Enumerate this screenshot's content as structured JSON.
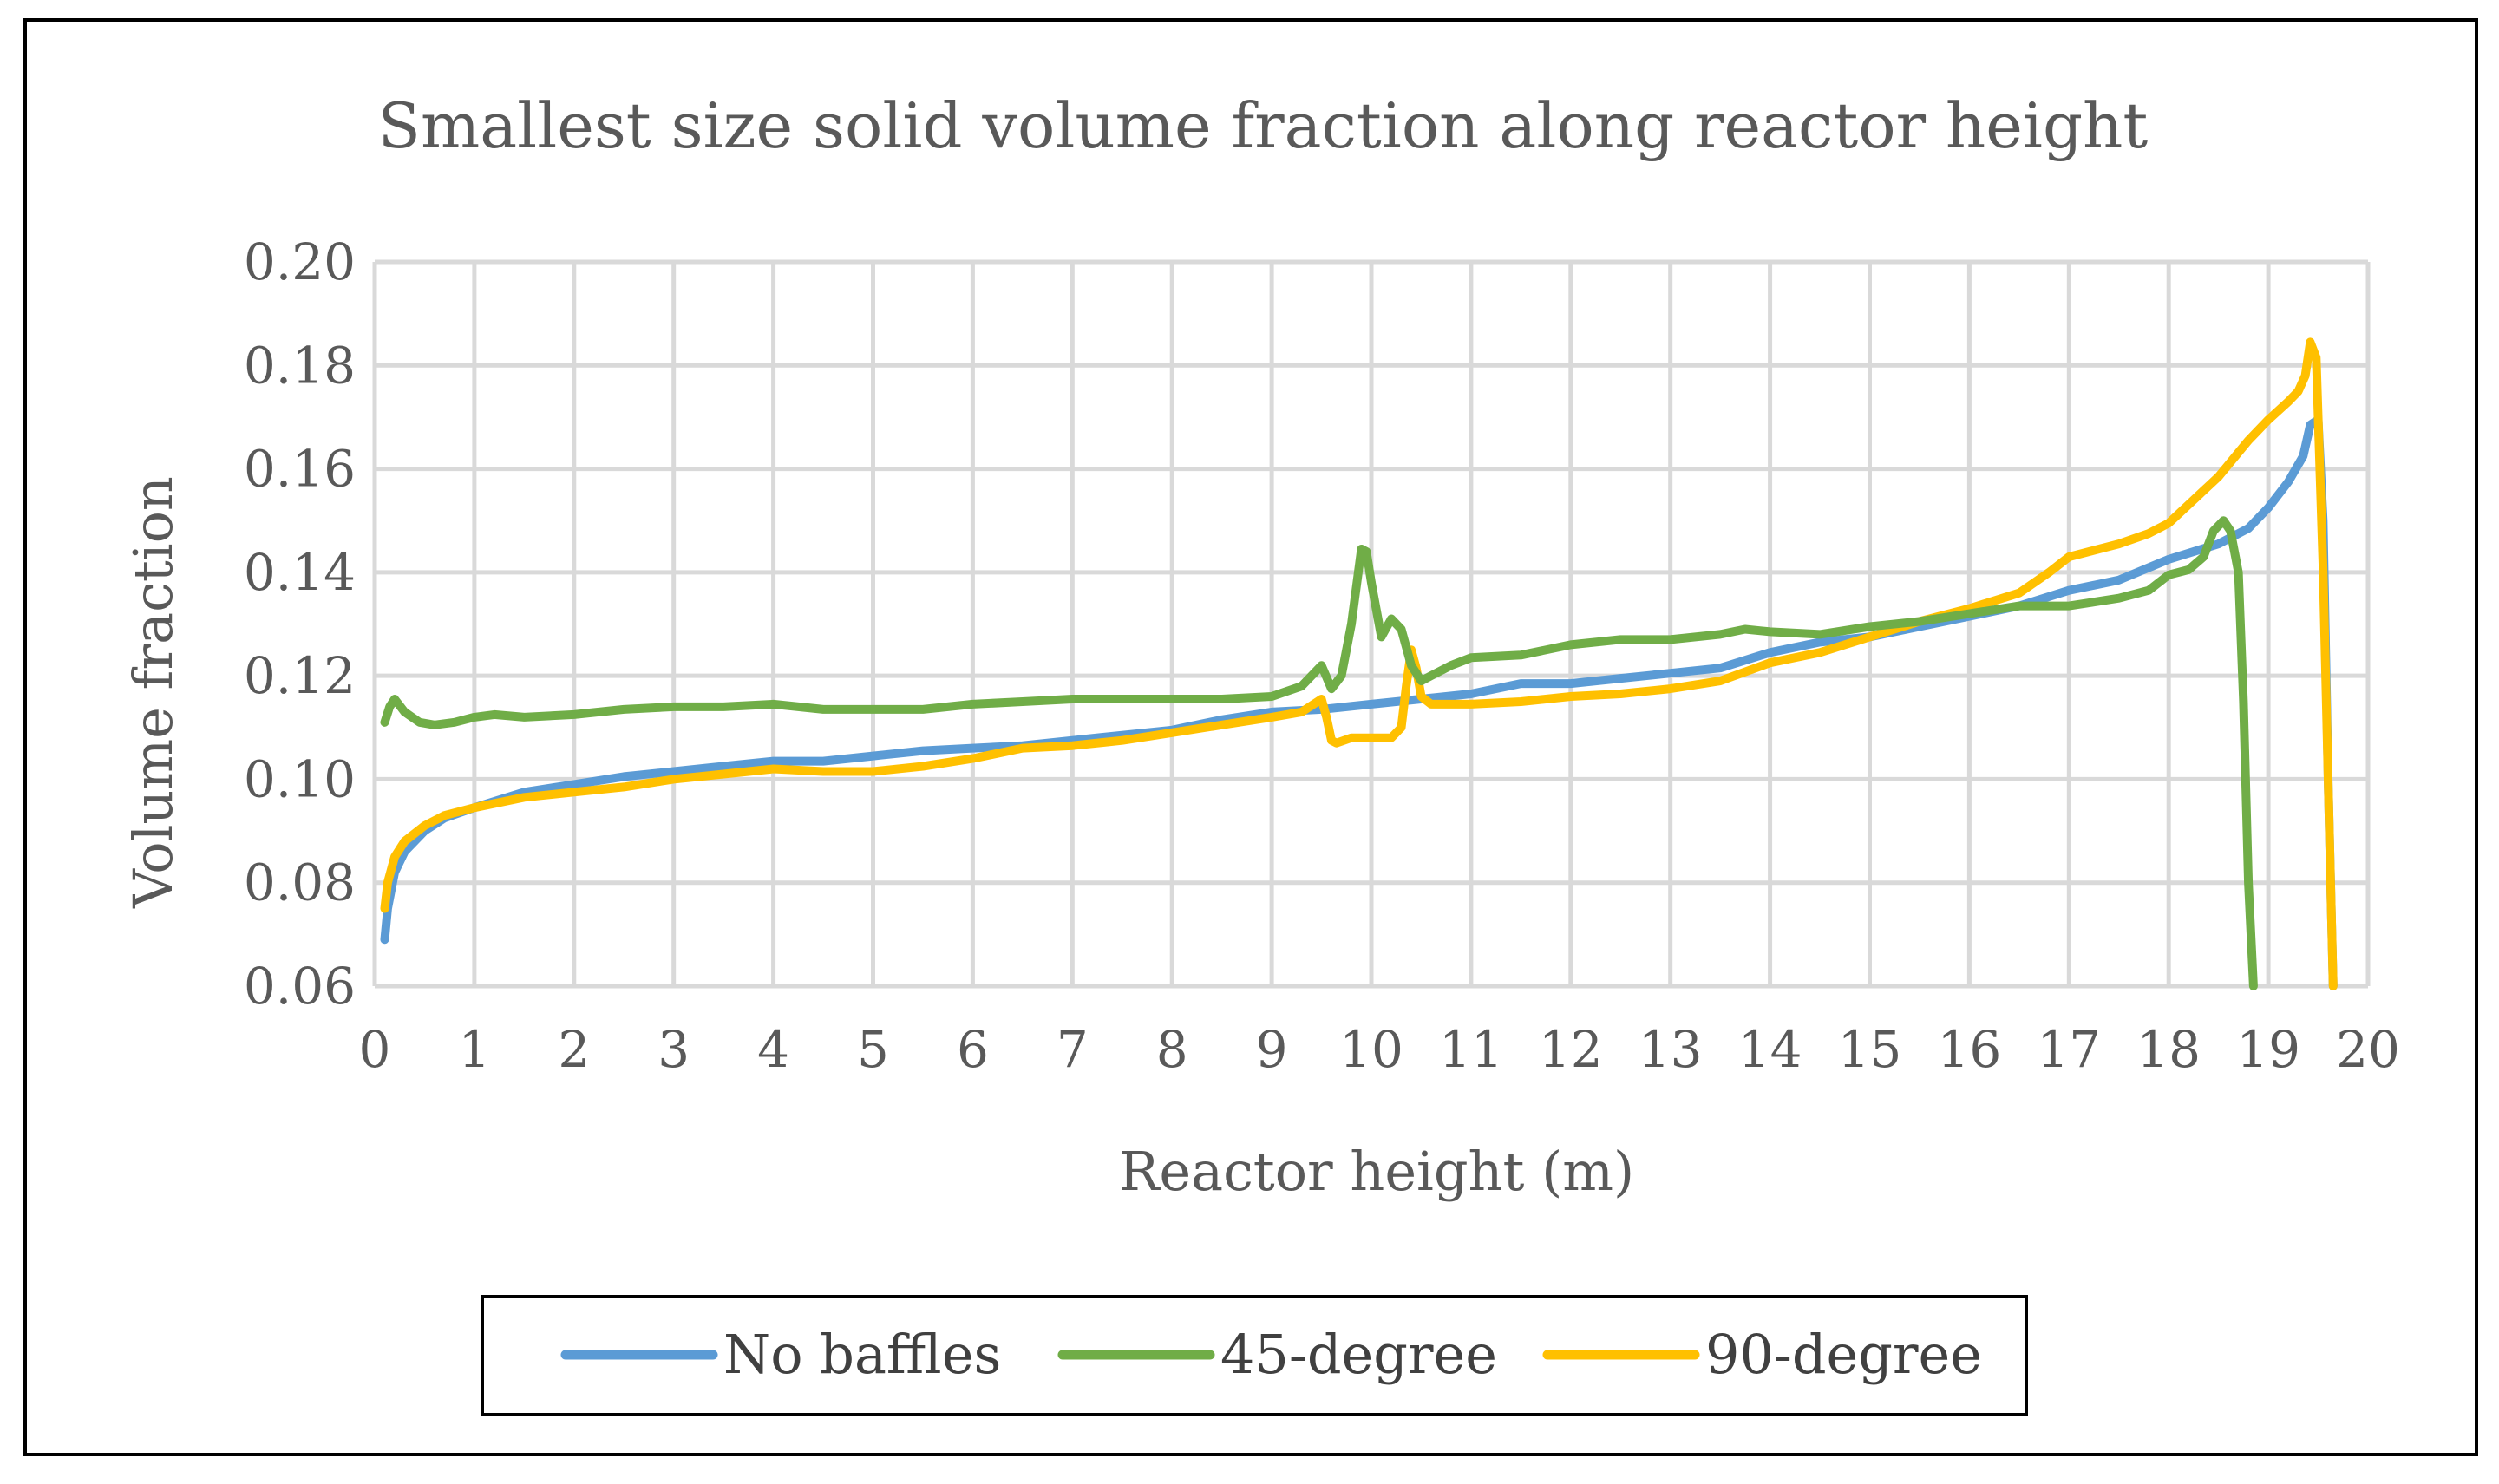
{
  "chart_data": {
    "type": "line",
    "title": "Smallest size solid volume fraction along reactor height",
    "xlabel": "Reactor height (m)",
    "ylabel": "Volume fraction",
    "xlim": [
      0,
      20
    ],
    "ylim": [
      0.06,
      0.2
    ],
    "x_ticks": [
      "0",
      "1",
      "2",
      "3",
      "4",
      "5",
      "6",
      "7",
      "8",
      "9",
      "10",
      "11",
      "12",
      "13",
      "14",
      "15",
      "16",
      "17",
      "18",
      "19",
      "20"
    ],
    "y_ticks": [
      "0.06",
      "0.08",
      "0.10",
      "0.12",
      "0.14",
      "0.16",
      "0.18",
      "0.20"
    ],
    "grid": true,
    "legend_position": "bottom",
    "series": [
      {
        "name": "No baffles",
        "color": "#5b9bd5",
        "x": [
          0.1,
          0.13,
          0.2,
          0.3,
          0.5,
          0.7,
          1.0,
          1.5,
          2.0,
          2.5,
          3.0,
          3.5,
          4.0,
          4.5,
          5.0,
          5.5,
          6.0,
          6.5,
          7.0,
          7.5,
          8.0,
          8.5,
          9.0,
          9.5,
          10.0,
          10.5,
          11.0,
          11.5,
          12.0,
          12.5,
          13.0,
          13.5,
          14.0,
          14.5,
          15.0,
          15.5,
          16.0,
          16.5,
          17.0,
          17.5,
          18.0,
          18.5,
          18.8,
          19.0,
          19.2,
          19.35,
          19.42,
          19.5,
          19.55,
          19.6,
          19.65
        ],
        "y": [
          0.069,
          0.075,
          0.082,
          0.086,
          0.09,
          0.0925,
          0.0945,
          0.0975,
          0.099,
          0.1005,
          0.1015,
          0.1025,
          0.1035,
          0.1035,
          0.1045,
          0.1055,
          0.106,
          0.1065,
          0.1075,
          0.1085,
          0.1095,
          0.1115,
          0.113,
          0.1135,
          0.1145,
          0.1155,
          0.1165,
          0.1185,
          0.1185,
          0.1195,
          0.1205,
          0.1215,
          0.1245,
          0.1265,
          0.1275,
          0.1295,
          0.1315,
          0.1335,
          0.1365,
          0.1385,
          0.1425,
          0.1455,
          0.1485,
          0.1525,
          0.1575,
          0.1625,
          0.1685,
          0.1695,
          0.15,
          0.1,
          0.06
        ]
      },
      {
        "name": "45-degree",
        "color": "#70ad47",
        "x": [
          0.1,
          0.15,
          0.2,
          0.3,
          0.45,
          0.6,
          0.8,
          1.0,
          1.2,
          1.5,
          2.0,
          2.5,
          3.0,
          3.5,
          4.0,
          4.5,
          5.0,
          5.5,
          6.0,
          6.5,
          7.0,
          7.5,
          8.0,
          8.5,
          9.0,
          9.3,
          9.5,
          9.6,
          9.7,
          9.8,
          9.9,
          9.95,
          10.0,
          10.1,
          10.2,
          10.3,
          10.4,
          10.5,
          10.6,
          10.8,
          11.0,
          11.5,
          12.0,
          12.5,
          13.0,
          13.5,
          13.75,
          14.0,
          14.5,
          15.0,
          15.5,
          16.0,
          16.5,
          17.0,
          17.5,
          17.8,
          18.0,
          18.2,
          18.35,
          18.45,
          18.55,
          18.62,
          18.7,
          18.75,
          18.8,
          18.85
        ],
        "y": [
          0.111,
          0.114,
          0.1155,
          0.113,
          0.111,
          0.1105,
          0.111,
          0.112,
          0.1125,
          0.112,
          0.1125,
          0.1135,
          0.114,
          0.114,
          0.1145,
          0.1135,
          0.1135,
          0.1135,
          0.1145,
          0.115,
          0.1155,
          0.1155,
          0.1155,
          0.1155,
          0.116,
          0.118,
          0.122,
          0.1175,
          0.12,
          0.13,
          0.1445,
          0.144,
          0.138,
          0.1275,
          0.131,
          0.129,
          0.122,
          0.119,
          0.12,
          0.122,
          0.1235,
          0.124,
          0.126,
          0.127,
          0.127,
          0.128,
          0.129,
          0.1285,
          0.128,
          0.1295,
          0.1305,
          0.132,
          0.1335,
          0.1335,
          0.135,
          0.1365,
          0.1395,
          0.1405,
          0.143,
          0.148,
          0.15,
          0.148,
          0.14,
          0.115,
          0.08,
          0.06
        ]
      },
      {
        "name": "90-degree",
        "color": "#ffc000",
        "x": [
          0.1,
          0.13,
          0.2,
          0.3,
          0.5,
          0.7,
          1.0,
          1.5,
          2.0,
          2.5,
          3.0,
          3.5,
          4.0,
          4.5,
          5.0,
          5.5,
          6.0,
          6.5,
          7.0,
          7.5,
          8.0,
          8.5,
          9.0,
          9.3,
          9.5,
          9.55,
          9.6,
          9.65,
          9.8,
          10.0,
          10.2,
          10.3,
          10.35,
          10.4,
          10.45,
          10.5,
          10.6,
          10.8,
          11.0,
          11.5,
          12.0,
          12.5,
          13.0,
          13.5,
          14.0,
          14.5,
          15.0,
          15.5,
          16.0,
          16.5,
          16.8,
          17.0,
          17.5,
          17.8,
          18.0,
          18.5,
          18.8,
          19.0,
          19.2,
          19.3,
          19.37,
          19.42,
          19.48,
          19.5,
          19.55,
          19.6,
          19.65
        ],
        "y": [
          0.075,
          0.08,
          0.085,
          0.088,
          0.091,
          0.093,
          0.0945,
          0.0965,
          0.0975,
          0.0985,
          0.1,
          0.101,
          0.102,
          0.1015,
          0.1015,
          0.1025,
          0.104,
          0.106,
          0.1065,
          0.1075,
          0.109,
          0.1105,
          0.112,
          0.113,
          0.1155,
          0.112,
          0.1075,
          0.107,
          0.108,
          0.108,
          0.108,
          0.11,
          0.118,
          0.125,
          0.1215,
          0.116,
          0.1145,
          0.1145,
          0.1145,
          0.115,
          0.116,
          0.1165,
          0.1175,
          0.119,
          0.1225,
          0.1245,
          0.1275,
          0.1305,
          0.133,
          0.136,
          0.14,
          0.143,
          0.1455,
          0.1475,
          0.1495,
          0.1585,
          0.1655,
          0.1695,
          0.173,
          0.175,
          0.178,
          0.1845,
          0.1815,
          0.17,
          0.14,
          0.1,
          0.06
        ]
      }
    ]
  }
}
